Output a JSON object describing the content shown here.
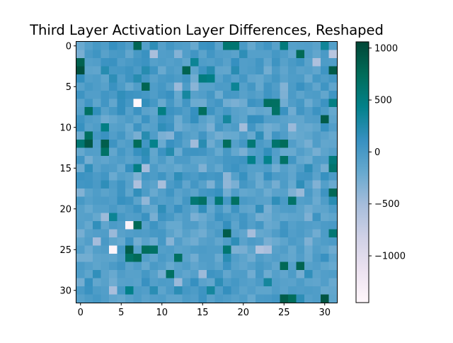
{
  "chart_data": {
    "type": "heatmap",
    "title": "Third Layer Activation Layer Differences, Reshaped",
    "xlabel": "",
    "ylabel": "",
    "rows": 32,
    "cols": 32,
    "x_ticks": [
      0,
      5,
      10,
      15,
      20,
      25,
      30
    ],
    "y_ticks": [
      0,
      5,
      10,
      15,
      20,
      25,
      30
    ],
    "colorbar": {
      "colormap": "PuBuGn",
      "vmin": -1450,
      "vmax": 1060,
      "ticks": [
        1000,
        500,
        0,
        -500,
        -1000
      ],
      "tick_labels": [
        "1000",
        "500",
        "0",
        "−500",
        "−1000"
      ]
    },
    "values": [
      [
        -210,
        -80,
        10,
        -40,
        120,
        40,
        -50,
        800,
        -80,
        170,
        -80,
        30,
        -40,
        -60,
        -200,
        80,
        100,
        -110,
        600,
        590,
        -10,
        -180,
        -30,
        50,
        -100,
        530,
        -80,
        -70,
        -60,
        -110,
        350,
        -70
      ],
      [
        -280,
        -10,
        60,
        -100,
        -10,
        10,
        -160,
        10,
        90,
        -540,
        -60,
        -50,
        -340,
        -60,
        50,
        -120,
        40,
        -60,
        -70,
        -110,
        170,
        -80,
        -80,
        -80,
        20,
        -40,
        -150,
        760,
        -60,
        -160,
        -10,
        -650
      ],
      [
        830,
        -80,
        -60,
        80,
        90,
        -60,
        -10,
        40,
        80,
        -80,
        -40,
        -80,
        -40,
        -140,
        370,
        -40,
        -70,
        -10,
        -100,
        120,
        -60,
        -50,
        40,
        -150,
        70,
        -90,
        -10,
        60,
        -110,
        -560,
        -30,
        -50
      ],
      [
        980,
        -130,
        -150,
        210,
        10,
        20,
        70,
        -20,
        210,
        60,
        -200,
        -30,
        -80,
        820,
        -130,
        70,
        220,
        -150,
        -160,
        200,
        -60,
        -30,
        30,
        -250,
        -20,
        -150,
        -30,
        -110,
        -80,
        -150,
        60,
        890
      ],
      [
        130,
        -70,
        -40,
        -140,
        170,
        -60,
        70,
        210,
        30,
        -100,
        -10,
        20,
        -30,
        50,
        -240,
        500,
        460,
        -90,
        20,
        -80,
        30,
        -150,
        -180,
        -70,
        30,
        -110,
        -40,
        -30,
        -200,
        20,
        -40,
        30
      ],
      [
        -90,
        10,
        -40,
        -100,
        90,
        -30,
        -180,
        -50,
        800,
        -40,
        20,
        -100,
        -450,
        -30,
        -370,
        -100,
        -90,
        -20,
        -30,
        370,
        -80,
        30,
        -180,
        50,
        -50,
        -330,
        -30,
        100,
        -10,
        -150,
        60,
        -150
      ],
      [
        70,
        -60,
        -60,
        40,
        -10,
        150,
        80,
        60,
        20,
        -50,
        40,
        100,
        -190,
        310,
        -100,
        -60,
        30,
        -220,
        20,
        10,
        -100,
        -40,
        -100,
        60,
        -20,
        -310,
        -20,
        -130,
        -40,
        -30,
        -160,
        60
      ],
      [
        -110,
        40,
        -140,
        40,
        -160,
        130,
        20,
        -1450,
        140,
        20,
        -200,
        20,
        -160,
        40,
        -220,
        -230,
        -20,
        40,
        -240,
        -290,
        -230,
        80,
        30,
        700,
        690,
        -240,
        -50,
        20,
        -210,
        -60,
        80,
        480
      ],
      [
        -80,
        680,
        140,
        -90,
        10,
        130,
        -80,
        80,
        -110,
        -150,
        480,
        80,
        30,
        -50,
        120,
        720,
        70,
        -70,
        20,
        -100,
        -130,
        -210,
        -150,
        -180,
        660,
        90,
        -240,
        50,
        -60,
        80,
        -30,
        -180
      ],
      [
        60,
        -50,
        -80,
        -230,
        -170,
        -90,
        -30,
        -140,
        80,
        -100,
        70,
        30,
        -220,
        -30,
        130,
        -100,
        -190,
        -30,
        320,
        -80,
        -140,
        130,
        120,
        -60,
        -70,
        -110,
        -150,
        -160,
        -60,
        -50,
        890,
        -130
      ],
      [
        110,
        -100,
        -40,
        470,
        -90,
        -70,
        -190,
        70,
        -120,
        -80,
        160,
        80,
        -240,
        -150,
        -90,
        -150,
        -290,
        30,
        -80,
        -30,
        -490,
        40,
        -140,
        -250,
        -200,
        -80,
        -450,
        -170,
        -200,
        -140,
        110,
        -60
      ],
      [
        -220,
        700,
        30,
        90,
        -60,
        30,
        -150,
        -280,
        210,
        -50,
        -290,
        -340,
        50,
        -70,
        -120,
        50,
        -150,
        -260,
        -200,
        -190,
        -60,
        -200,
        160,
        -240,
        50,
        -50,
        -220,
        -180,
        -140,
        -50,
        -110,
        -180
      ],
      [
        590,
        920,
        -40,
        860,
        70,
        -90,
        -40,
        750,
        40,
        420,
        -210,
        100,
        20,
        -110,
        -480,
        200,
        -230,
        -70,
        730,
        -80,
        30,
        570,
        -10,
        -80,
        620,
        740,
        -60,
        -170,
        -270,
        -50,
        -160,
        -150
      ],
      [
        -180,
        -60,
        -70,
        660,
        -160,
        20,
        -80,
        110,
        180,
        -160,
        80,
        230,
        -210,
        50,
        70,
        50,
        -40,
        -190,
        10,
        -170,
        -290,
        -80,
        -30,
        140,
        -60,
        -190,
        -200,
        -60,
        -140,
        -270,
        -130,
        -70
      ],
      [
        50,
        -260,
        -110,
        -150,
        -80,
        -40,
        -120,
        -60,
        140,
        -140,
        -30,
        -170,
        -20,
        -20,
        -130,
        -140,
        -80,
        -40,
        30,
        40,
        70,
        440,
        -20,
        420,
        -80,
        660,
        40,
        -170,
        -220,
        -30,
        -50,
        530
      ],
      [
        -230,
        150,
        -110,
        -20,
        -50,
        -170,
        120,
        470,
        -500,
        -30,
        -150,
        -120,
        -190,
        -90,
        -80,
        -310,
        -70,
        -170,
        20,
        80,
        -10,
        -80,
        -80,
        -40,
        -240,
        -80,
        -160,
        -50,
        160,
        -70,
        -260,
        620
      ],
      [
        80,
        50,
        -20,
        40,
        -210,
        -70,
        -120,
        -300,
        20,
        -30,
        60,
        -90,
        160,
        20,
        -20,
        70,
        20,
        50,
        -380,
        -80,
        110,
        -100,
        -200,
        120,
        -20,
        -50,
        -150,
        40,
        50,
        -110,
        110,
        -20
      ],
      [
        40,
        60,
        -10,
        160,
        -40,
        70,
        -90,
        -560,
        -60,
        -120,
        -520,
        -20,
        60,
        -150,
        30,
        -90,
        -300,
        10,
        -400,
        -290,
        30,
        -40,
        -220,
        -100,
        -260,
        -30,
        -190,
        160,
        -80,
        -320,
        -70,
        -200
      ],
      [
        -330,
        -120,
        -40,
        -120,
        -70,
        70,
        -140,
        150,
        -30,
        -200,
        -70,
        60,
        -110,
        -50,
        -120,
        30,
        60,
        110,
        -250,
        -50,
        -170,
        -140,
        -80,
        -220,
        -110,
        -90,
        -310,
        -440,
        -10,
        -170,
        70,
        780
      ],
      [
        10,
        -80,
        -30,
        -20,
        -60,
        110,
        70,
        -120,
        -400,
        -20,
        -80,
        -40,
        -140,
        30,
        580,
        680,
        -60,
        580,
        20,
        690,
        -10,
        -50,
        -100,
        -110,
        160,
        -10,
        650,
        -70,
        -40,
        -210,
        -40,
        200
      ],
      [
        -90,
        -190,
        -80,
        -80,
        -10,
        -100,
        -30,
        80,
        -130,
        -180,
        160,
        -60,
        100,
        -40,
        -130,
        140,
        -170,
        10,
        -170,
        70,
        -130,
        -160,
        140,
        -270,
        -100,
        -40,
        -30,
        -120,
        -230,
        -150,
        -130,
        -30
      ],
      [
        -90,
        -80,
        -180,
        -460,
        370,
        10,
        -60,
        -40,
        90,
        -280,
        70,
        10,
        -120,
        -50,
        -290,
        -210,
        -110,
        80,
        10,
        -70,
        40,
        -80,
        -260,
        -230,
        -120,
        -170,
        -130,
        -120,
        -310,
        70,
        -180,
        -140
      ],
      [
        -80,
        -180,
        150,
        -150,
        -20,
        -60,
        -1380,
        770,
        -90,
        70,
        -60,
        -190,
        -190,
        -50,
        -50,
        -170,
        -50,
        -80,
        130,
        -130,
        50,
        -70,
        30,
        -200,
        -160,
        50,
        -80,
        -30,
        -60,
        -80,
        -20,
        -10
      ],
      [
        -270,
        -90,
        -60,
        -50,
        -450,
        -100,
        -60,
        -30,
        -50,
        10,
        20,
        -120,
        -220,
        -90,
        -180,
        -240,
        -100,
        -10,
        880,
        -80,
        -150,
        -510,
        -180,
        -150,
        -50,
        70,
        -60,
        -20,
        -100,
        -240,
        -30,
        580
      ],
      [
        -140,
        -60,
        -500,
        0,
        -140,
        -190,
        80,
        -250,
        -110,
        -220,
        20,
        -350,
        -60,
        -180,
        -240,
        -100,
        -60,
        -160,
        -50,
        170,
        -110,
        -20,
        -60,
        -280,
        -210,
        -130,
        -20,
        -70,
        -310,
        -100,
        -40,
        -20
      ],
      [
        -60,
        -210,
        -70,
        -50,
        -1420,
        20,
        870,
        -90,
        720,
        670,
        -70,
        -40,
        -120,
        -90,
        -40,
        -20,
        -50,
        -50,
        590,
        -300,
        -280,
        -140,
        -600,
        -530,
        -100,
        -50,
        -180,
        -30,
        -210,
        -60,
        -120,
        -230
      ],
      [
        -250,
        -250,
        -130,
        -120,
        -140,
        -30,
        660,
        760,
        -60,
        -150,
        -10,
        -70,
        690,
        -110,
        -240,
        -50,
        -50,
        -200,
        190,
        -60,
        -130,
        -230,
        -40,
        -110,
        -60,
        -120,
        -170,
        -60,
        -200,
        -20,
        100,
        -130
      ],
      [
        -20,
        -80,
        -140,
        -90,
        -20,
        50,
        -110,
        -40,
        -180,
        -10,
        -60,
        -190,
        -90,
        -40,
        -150,
        -80,
        -50,
        -120,
        80,
        -90,
        -150,
        -80,
        10,
        -50,
        -150,
        770,
        -80,
        810,
        -90,
        -60,
        -140,
        -190
      ],
      [
        -40,
        -140,
        150,
        -110,
        -200,
        -50,
        -100,
        -90,
        20,
        -90,
        -270,
        690,
        -80,
        -150,
        -80,
        -460,
        70,
        30,
        -160,
        -50,
        -40,
        -240,
        30,
        -220,
        -80,
        -150,
        -30,
        -260,
        150,
        -120,
        -60,
        -40
      ],
      [
        -260,
        110,
        -160,
        -100,
        -240,
        -90,
        -80,
        -110,
        100,
        -70,
        -30,
        -40,
        -450,
        -50,
        120,
        -110,
        -160,
        170,
        -40,
        20,
        -60,
        -90,
        -20,
        320,
        -60,
        -100,
        -110,
        -30,
        -130,
        -150,
        -60,
        -200
      ],
      [
        -10,
        90,
        -30,
        -60,
        -530,
        20,
        440,
        -30,
        -60,
        190,
        -130,
        -20,
        180,
        20,
        -30,
        70,
        320,
        -50,
        130,
        -10,
        -120,
        -60,
        -140,
        -140,
        -50,
        -110,
        -30,
        -50,
        -30,
        -50,
        -180,
        -160
      ],
      [
        -90,
        -30,
        20,
        -50,
        -150,
        -180,
        -90,
        -30,
        -110,
        -60,
        -40,
        -130,
        -130,
        -30,
        -60,
        80,
        -100,
        -10,
        -40,
        -90,
        -40,
        -190,
        -10,
        0,
        40,
        870,
        730,
        170,
        -80,
        -40,
        940,
        -140
      ]
    ]
  }
}
